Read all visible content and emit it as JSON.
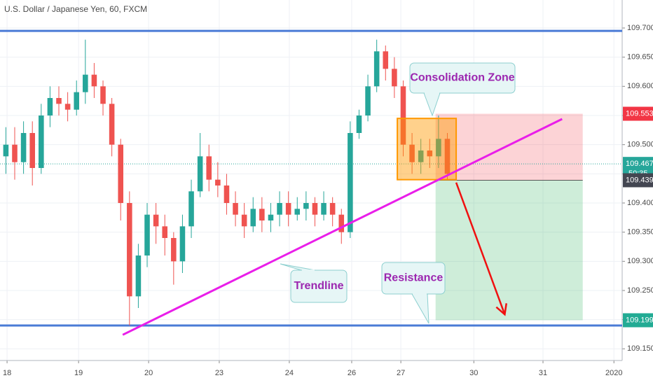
{
  "chart_data": {
    "type": "candlestick",
    "title": "U.S. Dollar / Japanese Yen, 60, FXCM",
    "x": [
      0,
      3,
      6,
      9,
      12,
      15,
      18,
      21,
      24,
      27,
      30,
      33,
      36,
      39,
      42,
      45,
      48,
      51,
      54,
      57,
      60,
      63,
      66,
      69,
      72,
      75,
      78,
      81,
      84,
      87,
      90,
      93,
      96,
      99,
      102,
      105,
      108,
      111,
      114,
      117,
      120,
      123,
      126,
      129,
      132,
      135,
      138,
      141,
      144,
      147,
      150
    ],
    "open": [
      109.48,
      109.5,
      109.47,
      109.52,
      109.46,
      109.55,
      109.58,
      109.57,
      109.56,
      109.59,
      109.62,
      109.6,
      109.57,
      109.5,
      109.4,
      109.24,
      109.31,
      109.38,
      109.36,
      109.34,
      109.3,
      109.36,
      109.42,
      109.48,
      109.44,
      109.43,
      109.4,
      109.38,
      109.36,
      109.39,
      109.37,
      109.38,
      109.4,
      109.38,
      109.39,
      109.4,
      109.38,
      109.4,
      109.38,
      109.35,
      109.52,
      109.55,
      109.6,
      109.66,
      109.63,
      109.6,
      109.5,
      109.47,
      109.49,
      109.48,
      109.51
    ],
    "high": [
      109.53,
      109.53,
      109.54,
      109.54,
      109.57,
      109.6,
      109.6,
      109.59,
      109.61,
      109.68,
      109.64,
      109.61,
      109.58,
      109.51,
      109.42,
      109.33,
      109.4,
      109.4,
      109.38,
      109.35,
      109.38,
      109.44,
      109.52,
      109.5,
      109.47,
      109.45,
      109.42,
      109.4,
      109.41,
      109.41,
      109.4,
      109.42,
      109.42,
      109.41,
      109.42,
      109.41,
      109.42,
      109.41,
      109.39,
      109.54,
      109.56,
      109.62,
      109.68,
      109.67,
      109.65,
      109.61,
      109.52,
      109.51,
      109.51,
      109.55,
      109.52
    ],
    "low": [
      109.45,
      109.44,
      109.45,
      109.43,
      109.45,
      109.53,
      109.55,
      109.54,
      109.55,
      109.57,
      109.58,
      109.55,
      109.48,
      109.37,
      109.19,
      109.22,
      109.29,
      109.33,
      109.31,
      109.26,
      109.28,
      109.34,
      109.41,
      109.42,
      109.41,
      109.38,
      109.36,
      109.34,
      109.35,
      109.35,
      109.35,
      109.36,
      109.36,
      109.37,
      109.37,
      109.36,
      109.37,
      109.36,
      109.33,
      109.34,
      109.51,
      109.54,
      109.59,
      109.61,
      109.58,
      109.48,
      109.45,
      109.45,
      109.46,
      109.46,
      109.44
    ],
    "close": [
      109.5,
      109.47,
      109.52,
      109.46,
      109.55,
      109.58,
      109.57,
      109.56,
      109.59,
      109.62,
      109.6,
      109.57,
      109.5,
      109.4,
      109.24,
      109.31,
      109.38,
      109.36,
      109.34,
      109.3,
      109.36,
      109.42,
      109.48,
      109.44,
      109.43,
      109.4,
      109.38,
      109.36,
      109.39,
      109.37,
      109.38,
      109.4,
      109.38,
      109.39,
      109.4,
      109.38,
      109.4,
      109.38,
      109.35,
      109.52,
      109.55,
      109.6,
      109.66,
      109.63,
      109.6,
      109.5,
      109.47,
      109.49,
      109.48,
      109.51,
      109.45
    ],
    "up_color": "#26a69a",
    "down_color": "#ef5350",
    "xlim": [
      -2,
      209.4
    ],
    "xticks": [
      {
        "value": 0.4,
        "label": "18"
      },
      {
        "value": 24.7,
        "label": "19"
      },
      {
        "value": 48.5,
        "label": "20"
      },
      {
        "value": 72.5,
        "label": "23"
      },
      {
        "value": 96.3,
        "label": "24"
      },
      {
        "value": 117.5,
        "label": "26"
      },
      {
        "value": 134.2,
        "label": "27"
      },
      {
        "value": 159,
        "label": "30"
      },
      {
        "value": 182.5,
        "label": "31"
      },
      {
        "value": 206.6,
        "label": "2020"
      }
    ],
    "ylim": [
      109.13,
      109.748
    ],
    "yticks": [
      {
        "value": 109.15,
        "label": "109.150"
      },
      {
        "value": 109.2,
        "label": "109.200"
      },
      {
        "value": 109.25,
        "label": "109.250"
      },
      {
        "value": 109.3,
        "label": "109.300"
      },
      {
        "value": 109.35,
        "label": "109.350"
      },
      {
        "value": 109.4,
        "label": "109.400"
      },
      {
        "value": 109.45,
        "label": "109.450"
      },
      {
        "value": 109.5,
        "label": "109.500"
      },
      {
        "value": 109.55,
        "label": "109.550"
      },
      {
        "value": 109.6,
        "label": "109.600"
      },
      {
        "value": 109.65,
        "label": "109.650"
      },
      {
        "value": 109.7,
        "label": "109.700"
      }
    ],
    "grid": true,
    "last_price": 109.467,
    "countdown": "50:35",
    "price_labels": [
      {
        "value": 109.553,
        "color": "#f23645"
      },
      {
        "value": 109.467,
        "color": "#26a69a"
      },
      {
        "value": 109.439,
        "color": "#434651"
      },
      {
        "value": 109.199,
        "color": "#22ab94"
      }
    ],
    "horizontal_levels": [
      109.695,
      109.19
    ],
    "trendline": {
      "x": [
        39.7,
        189
      ],
      "y": [
        109.174,
        109.544
      ],
      "label": "Trendline"
    },
    "consolidation_zone": {
      "label": "Consolidation Zone",
      "x": [
        133,
        153
      ],
      "y": [
        109.44,
        109.545
      ]
    },
    "position": {
      "x": [
        146,
        196
      ],
      "entry": 109.439,
      "stop": 109.553,
      "target": 109.199
    },
    "arrow": {
      "x": [
        153,
        169.5
      ],
      "y": [
        109.435,
        109.209
      ]
    },
    "resistance_label": "Resistance"
  }
}
